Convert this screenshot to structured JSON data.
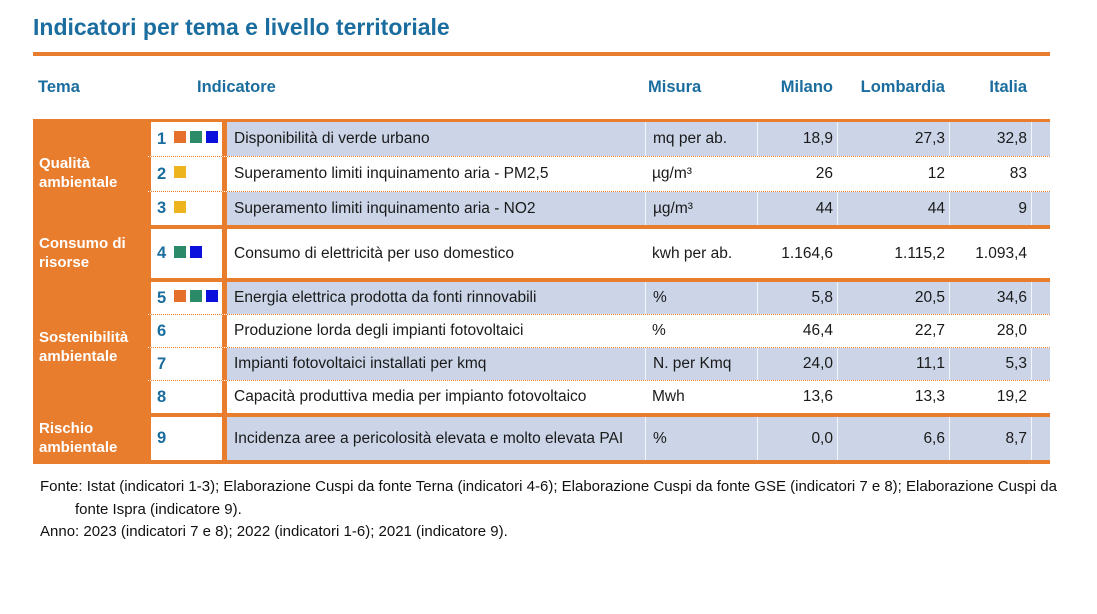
{
  "title": "Indicatori per tema e livello territoriale",
  "colors": {
    "accent_orange": "#e87d2e",
    "heading_blue": "#1a6d9e",
    "row_shade": "#cbd5e7",
    "squares": {
      "orange": "#e4702b",
      "green": "#2b8a67",
      "blue": "#0b10dd",
      "yellow": "#edb41e"
    }
  },
  "header": {
    "tema": "Tema",
    "indicatore": "Indicatore",
    "misura": "Misura",
    "milano": "Milano",
    "lombardia": "Lombardia",
    "italia": "Italia"
  },
  "groups": [
    {
      "tema": "Qualità ambientale",
      "rows": [
        {
          "num": "1",
          "squares": [
            "orange",
            "green",
            "blue"
          ],
          "indicator": "Disponibilità di verde urbano",
          "misura": "mq per ab.",
          "milano": "18,9",
          "lombardia": "27,3",
          "italia": "32,8"
        },
        {
          "num": "2",
          "squares": [
            "yellow"
          ],
          "indicator": "Superamento limiti inquinamento aria - PM2,5",
          "misura": "µg/m³",
          "milano": "26",
          "lombardia": "12",
          "italia": "83"
        },
        {
          "num": "3",
          "squares": [
            "yellow"
          ],
          "indicator": "Superamento limiti inquinamento aria - NO2",
          "misura": "µg/m³",
          "milano": "44",
          "lombardia": "44",
          "italia": "9"
        }
      ]
    },
    {
      "tema": "Consumo di risorse",
      "rows": [
        {
          "num": "4",
          "squares": [
            "green",
            "blue"
          ],
          "indicator": "Consumo di elettricità per uso domestico",
          "misura": "kwh per ab.",
          "milano": "1.164,6",
          "lombardia": "1.115,2",
          "italia": "1.093,4"
        }
      ]
    },
    {
      "tema": "Sostenibilità ambientale",
      "rows": [
        {
          "num": "5",
          "squares": [
            "orange",
            "green",
            "blue"
          ],
          "indicator": "Energia elettrica prodotta da fonti rinnovabili",
          "misura": "%",
          "milano": "5,8",
          "lombardia": "20,5",
          "italia": "34,6"
        },
        {
          "num": "6",
          "squares": [],
          "indicator": "Produzione lorda degli impianti fotovoltaici",
          "misura": "%",
          "milano": "46,4",
          "lombardia": "22,7",
          "italia": "28,0"
        },
        {
          "num": "7",
          "squares": [],
          "indicator": "Impianti fotovoltaici installati per kmq",
          "misura": "N. per Kmq",
          "milano": "24,0",
          "lombardia": "11,1",
          "italia": "5,3"
        },
        {
          "num": "8",
          "squares": [],
          "indicator": "Capacità produttiva media per impianto fotovoltaico",
          "misura": "Mwh",
          "milano": "13,6",
          "lombardia": "13,3",
          "italia": "19,2"
        }
      ]
    },
    {
      "tema": "Rischio ambientale",
      "rows": [
        {
          "num": "9",
          "squares": [],
          "indicator": "Incidenza aree a pericolosità elevata e molto elevata PAI",
          "misura": "%",
          "milano": "0,0",
          "lombardia": "6,6",
          "italia": "8,7"
        }
      ]
    }
  ],
  "footer": {
    "fonte": "Fonte: Istat (indicatori 1-3); Elaborazione Cuspi da fonte Terna (indicatori 4-6); Elaborazione Cuspi da fonte GSE (indicatori 7 e 8); Elaborazione Cuspi da fonte Ispra (indicatore 9).",
    "anno": "Anno: 2023 (indicatori 7 e 8); 2022 (indicatori 1-6); 2021 (indicatore 9)."
  }
}
